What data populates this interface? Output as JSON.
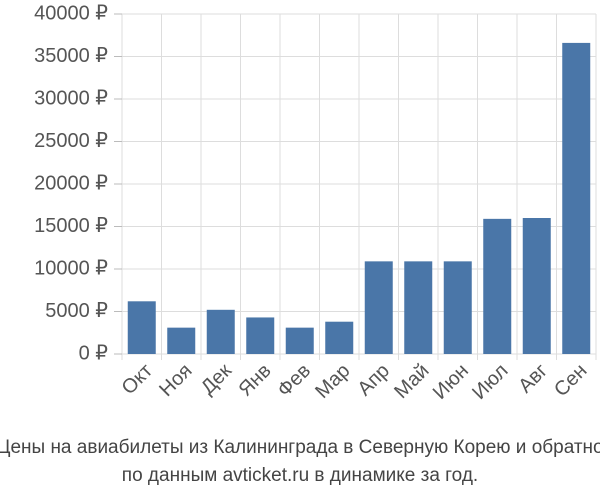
{
  "chart_data": {
    "type": "bar",
    "title": "Цены на авиабилеты из Калининграда в Северную Корею и обратно",
    "subtitle": "по данным avticket.ru в динамике за год.",
    "categories": [
      "Окт",
      "Ноя",
      "Дек",
      "Янв",
      "Фев",
      "Мар",
      "Апр",
      "Май",
      "Июн",
      "Июл",
      "Авг",
      "Сен"
    ],
    "values": [
      6200,
      3100,
      5200,
      4300,
      3100,
      3800,
      10900,
      10900,
      10900,
      15900,
      16000,
      36600
    ],
    "color": "#4a76a8",
    "ylim": [
      0,
      40000
    ],
    "yticks": [
      {
        "value": 0,
        "label": "0 ₽"
      },
      {
        "value": 5000,
        "label": "5000 ₽"
      },
      {
        "value": 10000,
        "label": "10000 ₽"
      },
      {
        "value": 15000,
        "label": "15000 ₽"
      },
      {
        "value": 20000,
        "label": "20000 ₽"
      },
      {
        "value": 25000,
        "label": "25000 ₽"
      },
      {
        "value": 30000,
        "label": "30000 ₽"
      },
      {
        "value": 35000,
        "label": "35000 ₽"
      },
      {
        "value": 40000,
        "label": "40000 ₽"
      }
    ],
    "grid": true
  }
}
